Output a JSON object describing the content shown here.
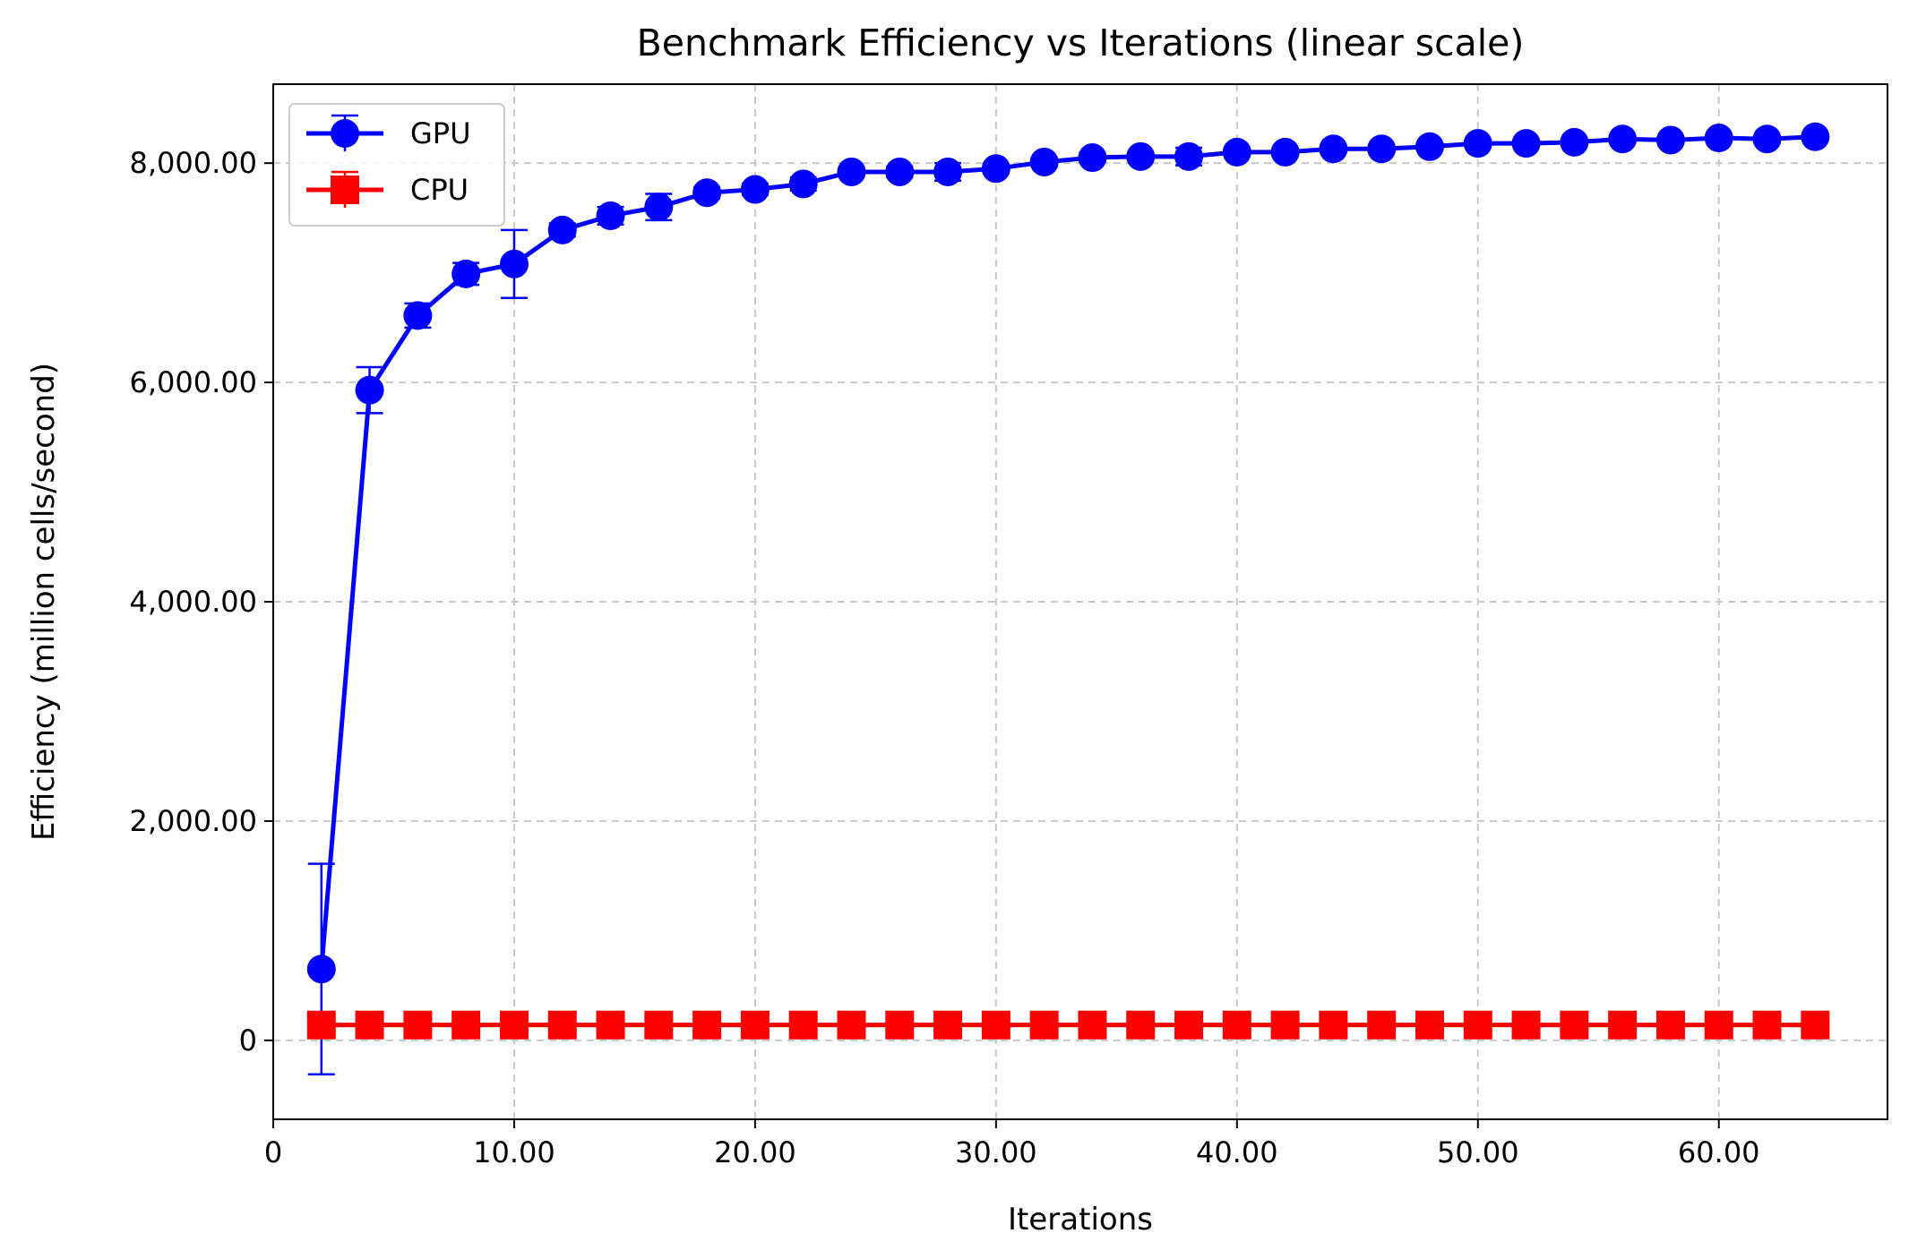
{
  "chart_data": {
    "type": "line",
    "title": "Benchmark Efficiency vs Iterations (linear scale)",
    "xlabel": "Iterations",
    "ylabel": "Efficiency (million cells/second)",
    "xlim": [
      0,
      67
    ],
    "ylim": [
      -720,
      8720
    ],
    "xticks": [
      0,
      10,
      20,
      30,
      40,
      50,
      60
    ],
    "xtick_labels": [
      "0",
      "10.00",
      "20.00",
      "30.00",
      "40.00",
      "50.00",
      "60.00"
    ],
    "yticks": [
      0,
      2000,
      4000,
      6000,
      8000
    ],
    "ytick_labels": [
      "0",
      "2,000.00",
      "4,000.00",
      "6,000.00",
      "8,000.00"
    ],
    "grid": true,
    "legend_position": "upper-left",
    "x": [
      2,
      4,
      6,
      8,
      10,
      12,
      14,
      16,
      18,
      20,
      22,
      24,
      26,
      28,
      30,
      32,
      34,
      36,
      38,
      40,
      42,
      44,
      46,
      48,
      50,
      52,
      54,
      56,
      58,
      60,
      62,
      64
    ],
    "series": [
      {
        "name": "GPU",
        "color": "#0000ff",
        "marker": "circle",
        "values": [
          650,
          5930,
          6610,
          6990,
          7080,
          7390,
          7520,
          7600,
          7730,
          7760,
          7810,
          7920,
          7920,
          7920,
          7950,
          8010,
          8050,
          8060,
          8060,
          8100,
          8100,
          8130,
          8130,
          8150,
          8180,
          8180,
          8190,
          8220,
          8210,
          8230,
          8220,
          8240
        ],
        "errors": [
          960,
          210,
          110,
          100,
          310,
          60,
          80,
          120,
          50,
          50,
          60,
          40,
          50,
          80,
          40,
          40,
          40,
          30,
          80,
          30,
          40,
          30,
          30,
          30,
          30,
          30,
          30,
          30,
          30,
          30,
          30,
          30
        ]
      },
      {
        "name": "CPU",
        "color": "#ff0000",
        "marker": "square",
        "values": [
          140,
          140,
          140,
          140,
          140,
          140,
          140,
          140,
          140,
          140,
          140,
          140,
          140,
          140,
          140,
          140,
          140,
          140,
          140,
          140,
          140,
          140,
          140,
          140,
          140,
          140,
          140,
          140,
          140,
          140,
          140,
          140
        ],
        "errors": [
          20,
          20,
          20,
          20,
          20,
          20,
          20,
          20,
          20,
          20,
          20,
          20,
          20,
          20,
          20,
          20,
          20,
          20,
          20,
          20,
          20,
          20,
          20,
          20,
          20,
          20,
          20,
          20,
          20,
          20,
          20,
          20
        ]
      }
    ]
  }
}
